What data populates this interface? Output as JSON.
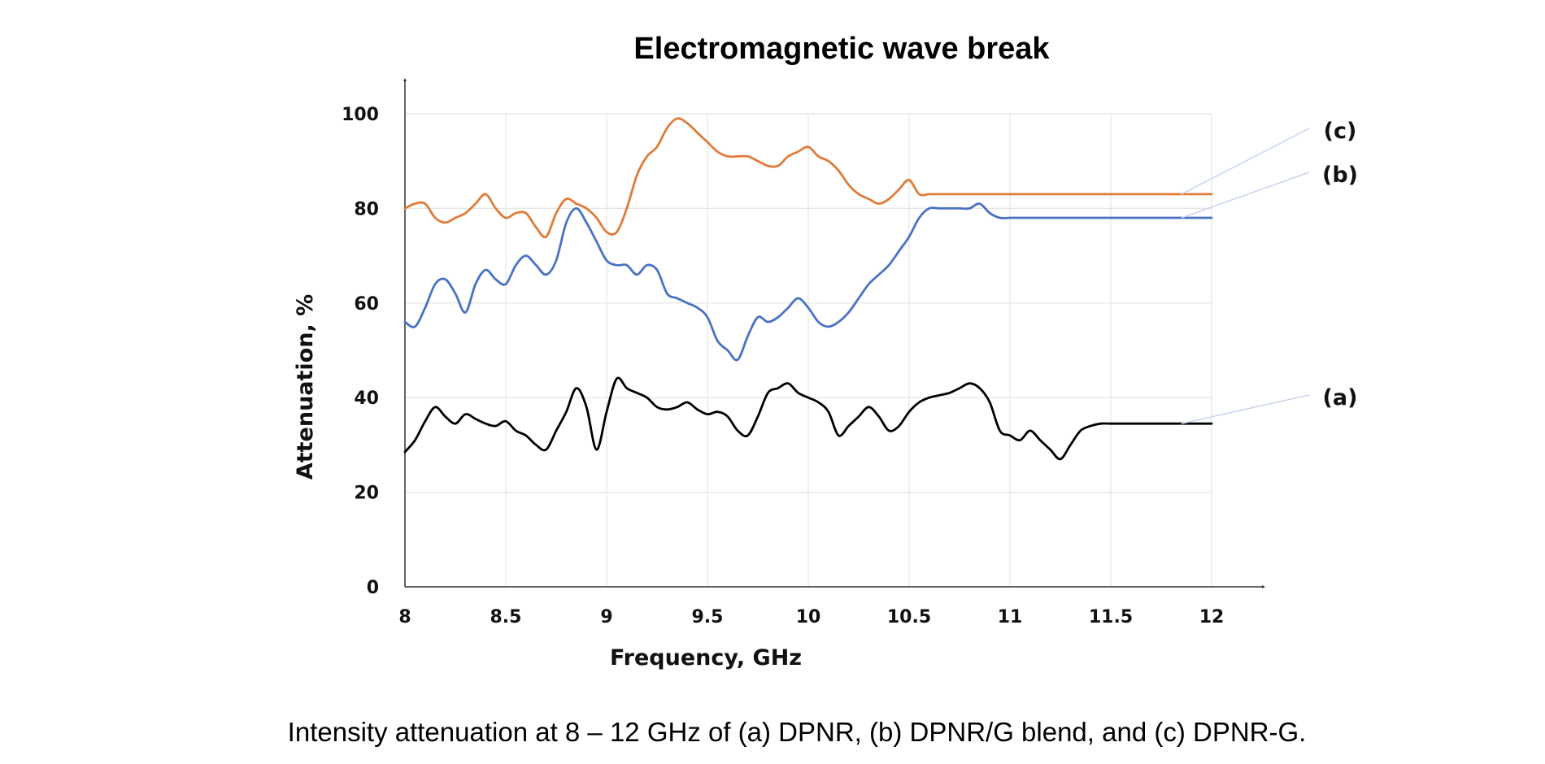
{
  "caption": "Intensity attenuation at 8 – 12 GHz of (a) DPNR, (b) DPNR/G blend, and (c) DPNR-G.",
  "chart_data": {
    "type": "line",
    "title": "Electromagnetic wave break",
    "xlabel": "Frequency, GHz",
    "ylabel": "Attenuation, %",
    "xlim": [
      8,
      12
    ],
    "ylim": [
      0,
      100
    ],
    "xticks": [
      "8",
      "8.5",
      "9",
      "9.5",
      "10",
      "10.5",
      "11",
      "11.5",
      "12"
    ],
    "yticks": [
      "0",
      "20",
      "40",
      "60",
      "80",
      "100"
    ],
    "grid": true,
    "legend": "right-side callouts",
    "x": [
      8.0,
      8.05,
      8.1,
      8.15,
      8.2,
      8.25,
      8.3,
      8.35,
      8.4,
      8.45,
      8.5,
      8.55,
      8.6,
      8.65,
      8.7,
      8.75,
      8.8,
      8.85,
      8.9,
      8.95,
      9.0,
      9.05,
      9.1,
      9.15,
      9.2,
      9.25,
      9.3,
      9.35,
      9.4,
      9.45,
      9.5,
      9.55,
      9.6,
      9.65,
      9.7,
      9.75,
      9.8,
      9.85,
      9.9,
      9.95,
      10.0,
      10.05,
      10.1,
      10.15,
      10.2,
      10.25,
      10.3,
      10.35,
      10.4,
      10.45,
      10.5,
      10.55,
      10.6,
      10.65,
      10.7,
      10.75,
      10.8,
      10.85,
      10.9,
      10.95,
      11.0,
      11.05,
      11.1,
      11.15,
      11.2,
      11.25,
      11.3,
      11.35,
      11.4,
      11.45,
      11.5,
      11.55,
      11.6,
      11.65,
      11.7,
      11.75,
      11.8,
      11.85,
      11.9,
      11.95,
      12.0
    ],
    "series": [
      {
        "name": "(a)",
        "color": "#000000",
        "values": [
          28.5,
          31,
          35,
          38,
          36,
          34.5,
          36.5,
          35.5,
          34.5,
          34,
          35,
          33,
          32,
          30,
          29,
          33,
          37,
          42,
          38,
          29,
          37,
          44,
          42,
          41,
          40,
          38,
          37.5,
          38,
          39,
          37.5,
          36.5,
          37,
          36,
          33,
          32,
          36,
          41,
          42,
          43,
          41,
          40,
          39,
          37,
          32,
          34,
          36,
          38,
          36,
          33,
          34,
          37,
          39,
          40,
          40.5,
          41,
          42,
          43,
          42,
          39,
          33,
          32,
          31,
          33,
          31,
          29,
          27,
          30,
          33,
          34,
          34.5,
          34.5,
          34.5,
          34.5,
          34.5,
          34.5,
          34.5,
          34.5,
          34.5,
          34.5,
          34.5,
          34.5
        ]
      },
      {
        "name": "(b)",
        "color": "#4a72c4",
        "values": [
          56,
          55,
          59,
          64,
          65,
          62,
          58,
          64,
          67,
          65,
          64,
          68,
          70,
          68,
          66,
          69,
          77,
          80,
          77,
          73,
          69,
          68,
          68,
          66,
          68,
          67,
          62,
          61,
          60,
          59,
          57,
          52,
          50,
          48,
          53,
          57,
          56,
          57,
          59,
          61,
          59,
          56,
          55,
          56,
          58,
          61,
          64,
          66,
          68,
          71,
          74,
          78,
          80,
          80,
          80,
          80,
          80,
          81,
          79,
          78,
          78,
          78,
          78,
          78,
          78,
          78,
          78,
          78,
          78,
          78,
          78,
          78,
          78,
          78,
          78,
          78,
          78,
          78,
          78,
          78,
          78
        ]
      },
      {
        "name": "(c)",
        "color": "#e07b39",
        "values": [
          80,
          81,
          81,
          78,
          77,
          78,
          79,
          81,
          83,
          80,
          78,
          79,
          79,
          76,
          74,
          79,
          82,
          81,
          80,
          78,
          75,
          75,
          80,
          87,
          91,
          93,
          97,
          99,
          98,
          96,
          94,
          92,
          91,
          91,
          91,
          90,
          89,
          89,
          91,
          92,
          93,
          91,
          90,
          88,
          85,
          83,
          82,
          81,
          82,
          84,
          86,
          83,
          83,
          83,
          83,
          83,
          83,
          83,
          83,
          83,
          83,
          83,
          83,
          83,
          83,
          83,
          83,
          83,
          83,
          83,
          83,
          83,
          83,
          83,
          83,
          83,
          83,
          83,
          83,
          83,
          83
        ]
      }
    ]
  }
}
